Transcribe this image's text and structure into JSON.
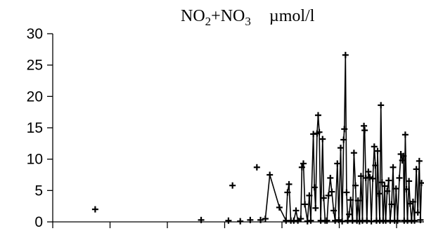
{
  "chart_data": {
    "type": "scatter",
    "title_parts": [
      "NO",
      "2",
      "+NO",
      "3",
      "µmol/l"
    ],
    "xlabel": "",
    "ylabel": "",
    "ylim": [
      0,
      30
    ],
    "yticks": [
      0,
      5,
      10,
      15,
      20,
      25,
      30
    ],
    "xlim": [
      0,
      100
    ],
    "x_tick_count": 7,
    "grid": false,
    "x_tick_labels_shown": false,
    "series": [
      {
        "marker": "plus",
        "points": [
          {
            "x": 11.5,
            "y": 2.0,
            "connected": false
          },
          {
            "x": 40.2,
            "y": 0.3,
            "connected": false
          },
          {
            "x": 47.6,
            "y": 0.2,
            "connected": false
          },
          {
            "x": 48.7,
            "y": 5.8,
            "connected": false
          },
          {
            "x": 50.8,
            "y": 0.1,
            "connected": false
          },
          {
            "x": 53.5,
            "y": 0.3,
            "connected": false
          },
          {
            "x": 55.3,
            "y": 8.7,
            "connected": false
          },
          {
            "x": 56.3,
            "y": 0.3,
            "connected": false
          },
          {
            "x": 57.6,
            "y": 0.5,
            "connected": false
          }
        ],
        "line": [
          {
            "x": 57.6,
            "y": 0.5
          },
          {
            "x": 58.8,
            "y": 7.5
          },
          {
            "x": 61.4,
            "y": 2.3
          },
          {
            "x": 63.2,
            "y": 0.2
          },
          {
            "x": 63.6,
            "y": 4.7
          },
          {
            "x": 64.0,
            "y": 6.0
          },
          {
            "x": 64.5,
            "y": 0.2
          },
          {
            "x": 65.3,
            "y": 0.2
          },
          {
            "x": 65.9,
            "y": 1.8
          },
          {
            "x": 66.4,
            "y": 0.2
          },
          {
            "x": 67.2,
            "y": 0.5
          },
          {
            "x": 67.5,
            "y": 8.7
          },
          {
            "x": 67.9,
            "y": 9.3
          },
          {
            "x": 68.3,
            "y": 2.8
          },
          {
            "x": 69.0,
            "y": 0.1
          },
          {
            "x": 69.5,
            "y": 4.2
          },
          {
            "x": 69.9,
            "y": 0.2
          },
          {
            "x": 70.6,
            "y": 14.0
          },
          {
            "x": 70.9,
            "y": 5.5
          },
          {
            "x": 71.2,
            "y": 2.2
          },
          {
            "x": 71.6,
            "y": 14.1
          },
          {
            "x": 71.9,
            "y": 17.0
          },
          {
            "x": 72.2,
            "y": 14.3
          },
          {
            "x": 72.6,
            "y": 0.2
          },
          {
            "x": 73.1,
            "y": 13.2
          },
          {
            "x": 73.4,
            "y": 3.8
          },
          {
            "x": 73.8,
            "y": 0.2
          },
          {
            "x": 74.3,
            "y": 0.2
          },
          {
            "x": 74.7,
            "y": 4.2
          },
          {
            "x": 75.2,
            "y": 7.0
          },
          {
            "x": 75.6,
            "y": 4.8
          },
          {
            "x": 76.1,
            "y": 1.8
          },
          {
            "x": 76.5,
            "y": 0.2
          },
          {
            "x": 77.1,
            "y": 9.3
          },
          {
            "x": 77.5,
            "y": 0.3
          },
          {
            "x": 78.0,
            "y": 11.8
          },
          {
            "x": 78.4,
            "y": 0.1
          },
          {
            "x": 78.8,
            "y": 13.1
          },
          {
            "x": 79.0,
            "y": 14.8
          },
          {
            "x": 79.3,
            "y": 26.6
          },
          {
            "x": 79.6,
            "y": 4.7
          },
          {
            "x": 79.9,
            "y": 0.2
          },
          {
            "x": 80.3,
            "y": 1.2
          },
          {
            "x": 80.7,
            "y": 3.5
          },
          {
            "x": 81.2,
            "y": 0.2
          },
          {
            "x": 81.6,
            "y": 11.0
          },
          {
            "x": 82.0,
            "y": 5.8
          },
          {
            "x": 82.4,
            "y": 0.2
          },
          {
            "x": 82.7,
            "y": 3.4
          },
          {
            "x": 83.1,
            "y": 0.1
          },
          {
            "x": 83.5,
            "y": 7.3
          },
          {
            "x": 83.9,
            "y": 0.2
          },
          {
            "x": 84.3,
            "y": 15.3
          },
          {
            "x": 84.5,
            "y": 14.6
          },
          {
            "x": 84.8,
            "y": 7.0
          },
          {
            "x": 85.1,
            "y": 0.2
          },
          {
            "x": 85.5,
            "y": 8.0
          },
          {
            "x": 85.9,
            "y": 7.1
          },
          {
            "x": 86.3,
            "y": 0.1
          },
          {
            "x": 86.7,
            "y": 6.9
          },
          {
            "x": 87.1,
            "y": 12.0
          },
          {
            "x": 87.4,
            "y": 9.0
          },
          {
            "x": 87.7,
            "y": 0.2
          },
          {
            "x": 88.0,
            "y": 11.3
          },
          {
            "x": 88.3,
            "y": 4.5
          },
          {
            "x": 88.6,
            "y": 0.2
          },
          {
            "x": 88.9,
            "y": 18.6
          },
          {
            "x": 89.2,
            "y": 6.3
          },
          {
            "x": 89.5,
            "y": 0.2
          },
          {
            "x": 89.9,
            "y": 5.7
          },
          {
            "x": 90.2,
            "y": 0.2
          },
          {
            "x": 90.6,
            "y": 4.9
          },
          {
            "x": 91.0,
            "y": 6.6
          },
          {
            "x": 91.4,
            "y": 0.2
          },
          {
            "x": 91.8,
            "y": 2.8
          },
          {
            "x": 92.2,
            "y": 8.7
          },
          {
            "x": 92.6,
            "y": 0.2
          },
          {
            "x": 93.0,
            "y": 5.3
          },
          {
            "x": 93.4,
            "y": 0.2
          },
          {
            "x": 93.9,
            "y": 7.0
          },
          {
            "x": 94.3,
            "y": 10.8
          },
          {
            "x": 94.7,
            "y": 9.8
          },
          {
            "x": 95.0,
            "y": 10.5
          },
          {
            "x": 95.2,
            "y": 0.2
          },
          {
            "x": 95.5,
            "y": 13.9
          },
          {
            "x": 95.8,
            "y": 5.2
          },
          {
            "x": 96.1,
            "y": 0.2
          },
          {
            "x": 96.5,
            "y": 6.5
          },
          {
            "x": 96.8,
            "y": 2.9
          },
          {
            "x": 97.2,
            "y": 0.2
          },
          {
            "x": 97.6,
            "y": 3.2
          },
          {
            "x": 98.0,
            "y": 0.2
          },
          {
            "x": 98.5,
            "y": 8.4
          },
          {
            "x": 98.9,
            "y": 1.5
          },
          {
            "x": 99.3,
            "y": 9.7
          },
          {
            "x": 99.6,
            "y": 0.3
          },
          {
            "x": 99.9,
            "y": 6.2
          }
        ]
      }
    ]
  }
}
